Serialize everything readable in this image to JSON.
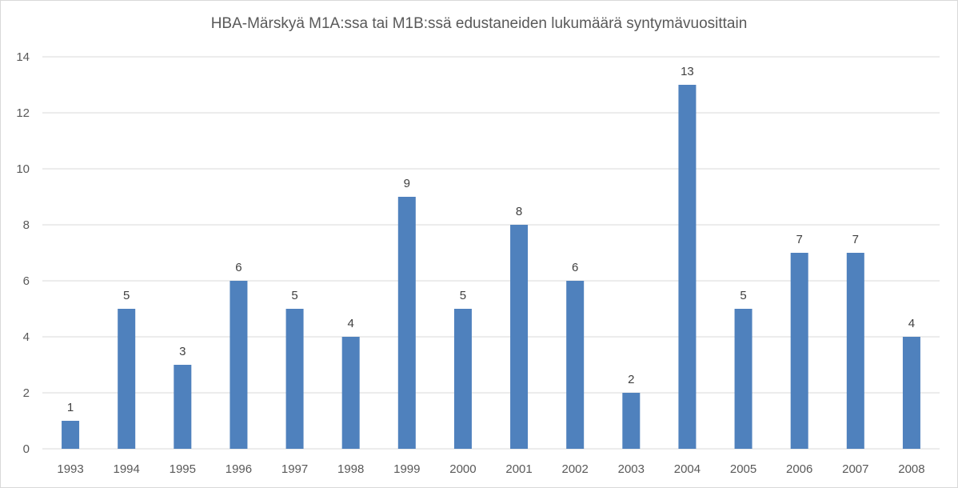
{
  "chart_data": {
    "type": "bar",
    "title": "HBA-Märskyä M1A:ssa tai M1B:ssä edustaneiden lukumäärä syntymävuosittain",
    "xlabel": "",
    "ylabel": "",
    "categories": [
      "1993",
      "1994",
      "1995",
      "1996",
      "1997",
      "1998",
      "1999",
      "2000",
      "2001",
      "2002",
      "2003",
      "2004",
      "2005",
      "2006",
      "2007",
      "2008"
    ],
    "values": [
      1,
      5,
      3,
      6,
      5,
      4,
      9,
      5,
      8,
      6,
      2,
      13,
      5,
      7,
      7,
      4
    ],
    "ylim": [
      0,
      14
    ],
    "yticks": [
      0,
      2,
      4,
      6,
      8,
      10,
      12,
      14
    ],
    "grid": "horizontal",
    "legend": "none",
    "data_labels": true,
    "bar_color": "#4f81bd",
    "grid_color": "#d9d9d9"
  }
}
